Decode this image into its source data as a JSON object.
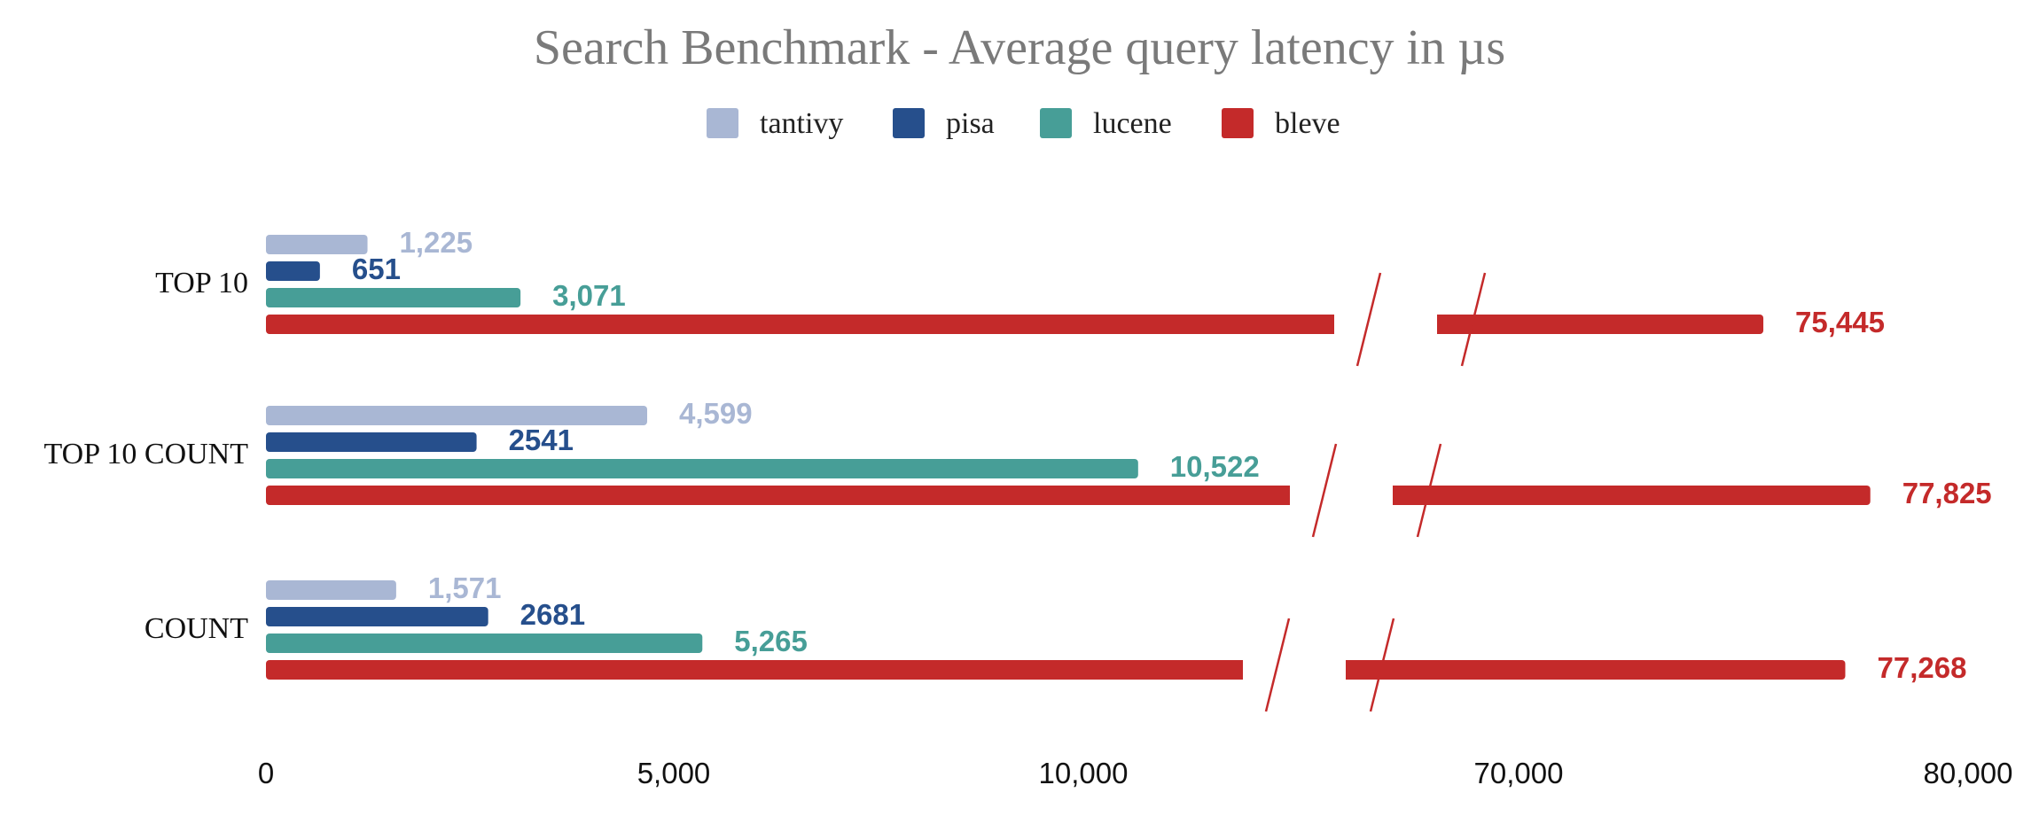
{
  "chart_data": {
    "type": "bar",
    "orientation": "horizontal",
    "title": "Search Benchmark - Average query latency in µs",
    "legend_position": "top",
    "grid": false,
    "axis_break": {
      "from": 15000,
      "to": 65000
    },
    "categories": [
      "TOP 10",
      "TOP 10 COUNT",
      "COUNT"
    ],
    "series": [
      {
        "name": "tantivy",
        "color": "#a9b7d4",
        "values": [
          1225,
          4599,
          1571
        ],
        "labels": [
          "1,225",
          "4,599",
          "1,571"
        ]
      },
      {
        "name": "pisa",
        "color": "#264f8c",
        "values": [
          651,
          2541,
          2681
        ],
        "labels": [
          "651",
          "2541",
          "2681"
        ]
      },
      {
        "name": "lucene",
        "color": "#479e97",
        "values": [
          3071,
          10522,
          5265
        ],
        "labels": [
          "3,071",
          "10,522",
          "5,265"
        ]
      },
      {
        "name": "bleve",
        "color": "#c42a2a",
        "values": [
          75445,
          77825,
          77268
        ],
        "labels": [
          "75,445",
          "77,825",
          "77,268"
        ]
      }
    ],
    "x_ticks": [
      {
        "value": 0,
        "label": "0"
      },
      {
        "value": 5000,
        "label": "5,000"
      },
      {
        "value": 10000,
        "label": "10,000"
      },
      {
        "value": 70000,
        "label": "70,000"
      },
      {
        "value": 80000,
        "label": "80,000"
      }
    ]
  }
}
